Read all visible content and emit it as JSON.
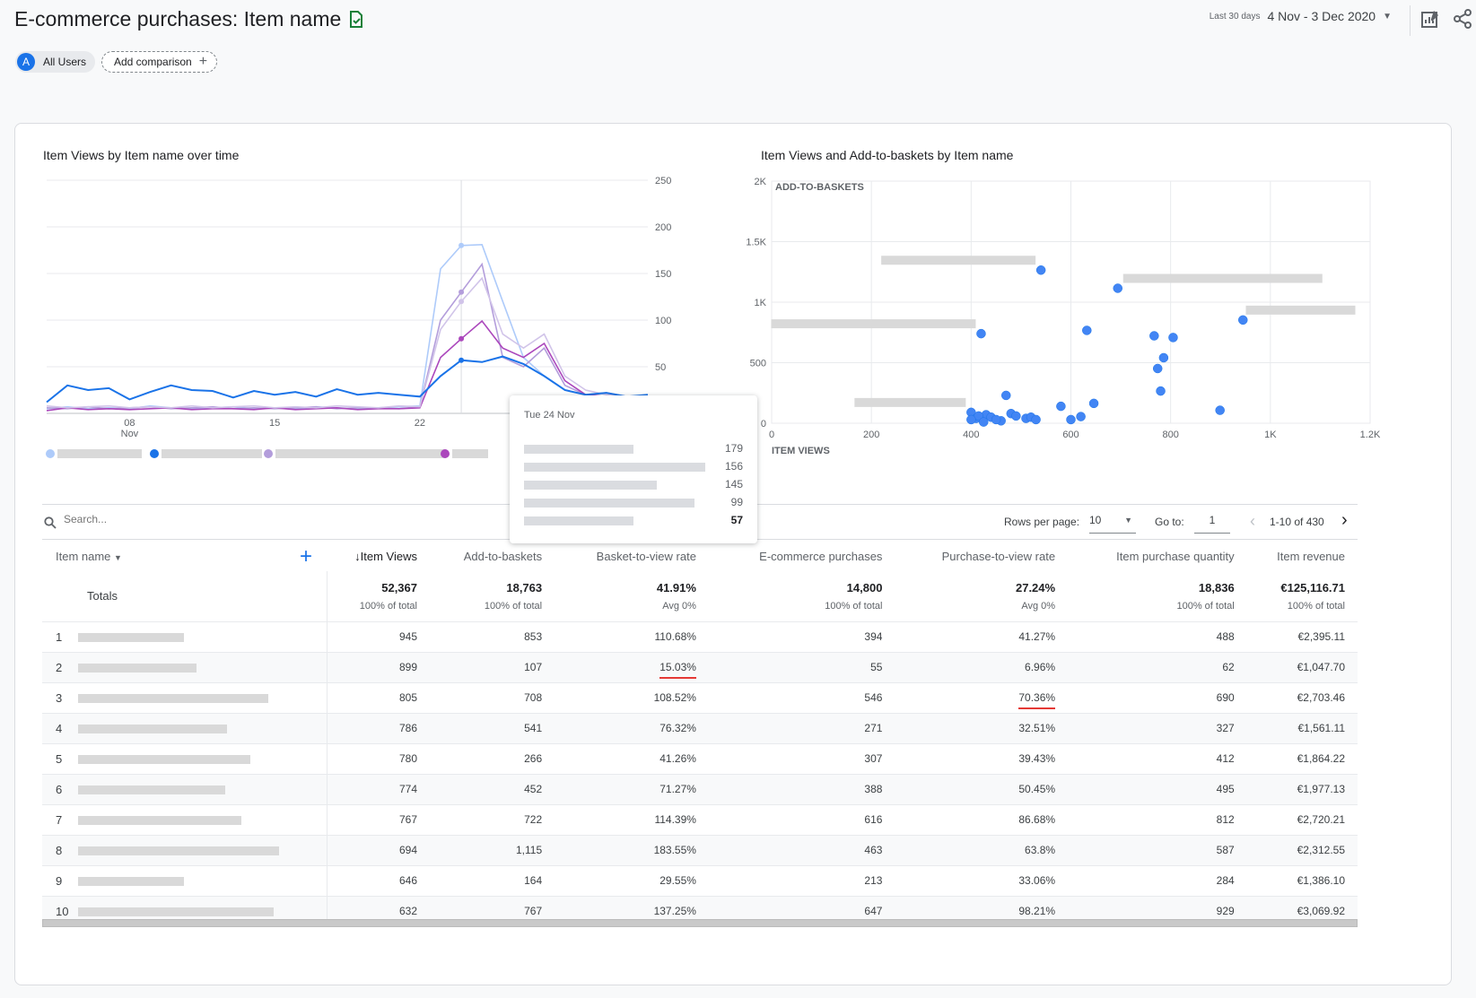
{
  "header": {
    "title": "E-commerce purchases: Item name",
    "date_range_label": "Last 30 days",
    "date_range": "4 Nov - 3 Dec 2020"
  },
  "chips": {
    "segment_letter": "A",
    "segment": "All Users",
    "add_comparison": "Add comparison"
  },
  "line_chart": {
    "title": "Item Views by Item name over time",
    "y_ticks": [
      "250",
      "200",
      "150",
      "100",
      "50"
    ],
    "x_ticks": [
      "08",
      "15",
      "22"
    ],
    "x_sub": "Nov",
    "tooltip": {
      "date": "Tue 24 Nov",
      "values": [
        "179",
        "156",
        "145",
        "99",
        "57"
      ]
    }
  },
  "scatter_chart": {
    "title": "Item Views and Add-to-baskets by Item name",
    "y_label": "ADD-TO-BASKETS",
    "x_label": "ITEM VIEWS",
    "y_ticks": [
      "2K",
      "1.5K",
      "1K",
      "500",
      "0"
    ],
    "x_ticks": [
      "0",
      "200",
      "400",
      "600",
      "800",
      "1K",
      "1.2K"
    ]
  },
  "chart_data": [
    {
      "type": "line",
      "title": "Item Views by Item name over time",
      "x": [
        "04 Nov",
        "05 Nov",
        "06 Nov",
        "07 Nov",
        "08 Nov",
        "09 Nov",
        "10 Nov",
        "11 Nov",
        "12 Nov",
        "13 Nov",
        "14 Nov",
        "15 Nov",
        "16 Nov",
        "17 Nov",
        "18 Nov",
        "19 Nov",
        "20 Nov",
        "21 Nov",
        "22 Nov",
        "23 Nov",
        "24 Nov",
        "25 Nov",
        "26 Nov",
        "27 Nov",
        "28 Nov",
        "29 Nov",
        "30 Nov",
        "01 Dec",
        "02 Dec",
        "03 Dec"
      ],
      "ylim": [
        0,
        250
      ],
      "series": [
        {
          "color": "#aecbfa",
          "values": [
            5,
            7,
            5,
            6,
            5,
            8,
            6,
            5,
            6,
            7,
            5,
            6,
            5,
            7,
            6,
            5,
            6,
            7,
            8,
            155,
            180,
            181,
            120,
            60,
            40,
            25,
            20,
            18,
            15,
            12
          ]
        },
        {
          "color": "#1a73e8",
          "values": [
            12,
            30,
            25,
            27,
            15,
            23,
            30,
            25,
            24,
            17,
            24,
            20,
            23,
            18,
            26,
            20,
            22,
            20,
            18,
            40,
            57,
            55,
            61,
            53,
            40,
            25,
            20,
            22,
            18,
            20
          ]
        },
        {
          "color": "#b39ddb",
          "values": [
            6,
            5,
            7,
            5,
            6,
            7,
            5,
            6,
            7,
            5,
            6,
            5,
            6,
            7,
            5,
            6,
            6,
            5,
            7,
            100,
            130,
            160,
            60,
            50,
            70,
            30,
            20,
            22,
            18,
            15
          ]
        },
        {
          "color": "#ab47bc",
          "values": [
            3,
            6,
            4,
            5,
            4,
            5,
            6,
            4,
            5,
            5,
            4,
            6,
            4,
            5,
            6,
            4,
            5,
            5,
            6,
            60,
            80,
            99,
            70,
            60,
            75,
            35,
            20,
            18,
            15,
            12
          ]
        },
        {
          "color": "#d1c4e9",
          "values": [
            8,
            6,
            7,
            8,
            6,
            7,
            6,
            8,
            6,
            7,
            8,
            6,
            7,
            6,
            8,
            7,
            6,
            8,
            7,
            90,
            120,
            145,
            85,
            70,
            85,
            40,
            25,
            20,
            18,
            15
          ]
        }
      ]
    },
    {
      "type": "scatter",
      "title": "Item Views and Add-to-baskets by Item name",
      "xlabel": "ITEM VIEWS",
      "ylabel": "ADD-TO-BASKETS",
      "xlim": [
        0,
        1200
      ],
      "ylim": [
        0,
        2000
      ],
      "points": [
        [
          945,
          853
        ],
        [
          899,
          107
        ],
        [
          805,
          708
        ],
        [
          786,
          541
        ],
        [
          780,
          266
        ],
        [
          774,
          452
        ],
        [
          767,
          722
        ],
        [
          694,
          1115
        ],
        [
          646,
          164
        ],
        [
          632,
          767
        ],
        [
          540,
          1265
        ],
        [
          420,
          740
        ],
        [
          580,
          140
        ],
        [
          600,
          30
        ],
        [
          620,
          55
        ],
        [
          470,
          230
        ],
        [
          480,
          80
        ],
        [
          510,
          40
        ],
        [
          430,
          70
        ],
        [
          440,
          50
        ],
        [
          460,
          20
        ],
        [
          400,
          90
        ],
        [
          410,
          40
        ],
        [
          450,
          30
        ],
        [
          490,
          60
        ],
        [
          520,
          50
        ],
        [
          530,
          30
        ],
        [
          415,
          60
        ],
        [
          425,
          10
        ],
        [
          400,
          30
        ]
      ]
    }
  ],
  "table": {
    "search_placeholder": "Search...",
    "rows_per_page_label": "Rows per page:",
    "rows_per_page": "10",
    "goto_label": "Go to:",
    "goto_value": "1",
    "page_range": "1-10 of 430",
    "columns": [
      "Item name",
      "Item Views",
      "Add-to-baskets",
      "Basket-to-view rate",
      "E-commerce purchases",
      "Purchase-to-view rate",
      "Item purchase quantity",
      "Item revenue"
    ],
    "totals_label": "Totals",
    "totals": [
      {
        "value": "52,367",
        "pct": "100% of total"
      },
      {
        "value": "18,763",
        "pct": "100% of total"
      },
      {
        "value": "41.91%",
        "pct": "Avg 0%"
      },
      {
        "value": "14,800",
        "pct": "100% of total"
      },
      {
        "value": "27.24%",
        "pct": "Avg 0%"
      },
      {
        "value": "18,836",
        "pct": "100% of total"
      },
      {
        "value": "€125,116.71",
        "pct": "100% of total"
      }
    ],
    "rows": [
      {
        "idx": "1",
        "cells": [
          "945",
          "853",
          "110.68%",
          "394",
          "41.27%",
          "488",
          "€2,395.11"
        ]
      },
      {
        "idx": "2",
        "cells": [
          "899",
          "107",
          "15.03%",
          "55",
          "6.96%",
          "62",
          "€1,047.70"
        ]
      },
      {
        "idx": "3",
        "cells": [
          "805",
          "708",
          "108.52%",
          "546",
          "70.36%",
          "690",
          "€2,703.46"
        ]
      },
      {
        "idx": "4",
        "cells": [
          "786",
          "541",
          "76.32%",
          "271",
          "32.51%",
          "327",
          "€1,561.11"
        ]
      },
      {
        "idx": "5",
        "cells": [
          "780",
          "266",
          "41.26%",
          "307",
          "39.43%",
          "412",
          "€1,864.22"
        ]
      },
      {
        "idx": "6",
        "cells": [
          "774",
          "452",
          "71.27%",
          "388",
          "50.45%",
          "495",
          "€1,977.13"
        ]
      },
      {
        "idx": "7",
        "cells": [
          "767",
          "722",
          "114.39%",
          "616",
          "86.68%",
          "812",
          "€2,720.21"
        ]
      },
      {
        "idx": "8",
        "cells": [
          "694",
          "1,115",
          "183.55%",
          "463",
          "63.8%",
          "587",
          "€2,312.55"
        ]
      },
      {
        "idx": "9",
        "cells": [
          "646",
          "164",
          "29.55%",
          "213",
          "33.06%",
          "284",
          "€1,386.10"
        ]
      },
      {
        "idx": "10",
        "cells": [
          "632",
          "767",
          "137.25%",
          "647",
          "98.21%",
          "929",
          "€3,069.92"
        ]
      }
    ]
  }
}
